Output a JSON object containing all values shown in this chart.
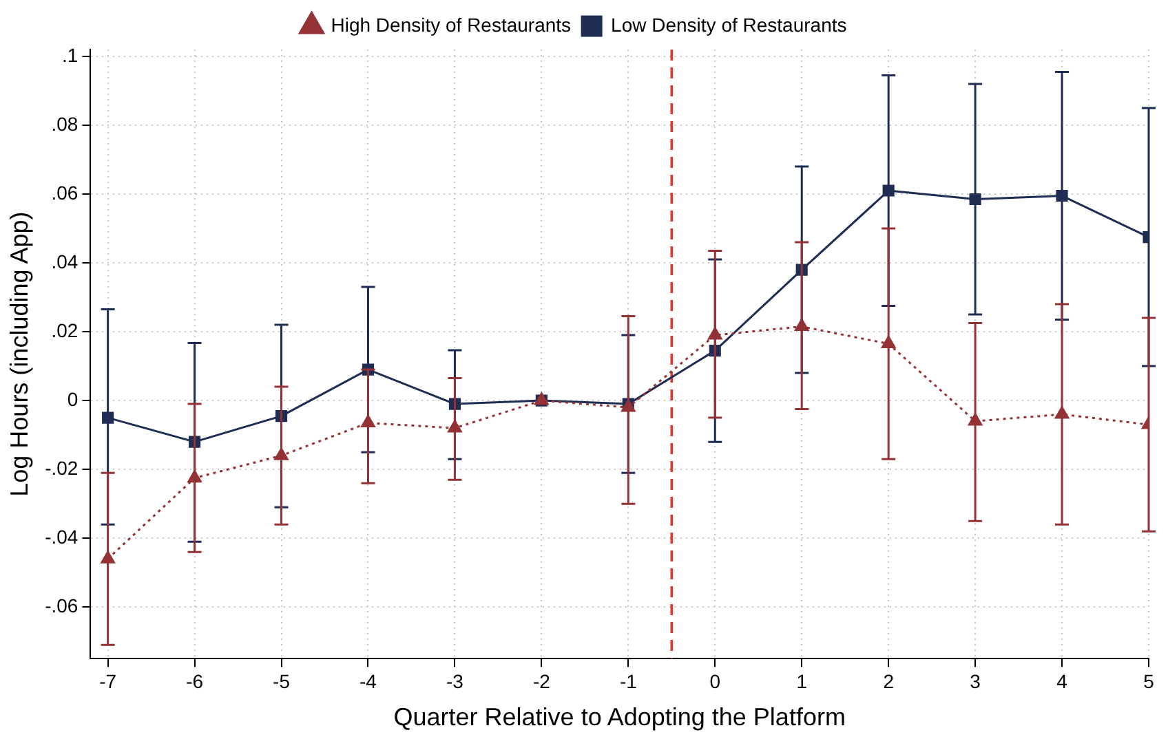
{
  "chart_data": {
    "type": "line",
    "xlabel": "Quarter Relative to Adopting the Platform",
    "ylabel": "Log Hours (including App)",
    "x": [
      -7,
      -6,
      -5,
      -4,
      -3,
      -2,
      -1,
      0,
      1,
      2,
      3,
      4,
      5
    ],
    "series": [
      {
        "name": "Low Density of Restaurants",
        "color": "#1f2d55",
        "marker": "square",
        "line_style": "solid",
        "values": [
          -0.005,
          -0.012,
          -0.0045,
          0.009,
          -0.001,
          0,
          -0.001,
          0.0145,
          0.038,
          0.061,
          0.0585,
          0.0595,
          0.0475
        ],
        "errors": [
          [
            -0.036,
            0.0265
          ],
          [
            -0.041,
            0.0167
          ],
          [
            -0.031,
            0.022
          ],
          [
            -0.015,
            0.033
          ],
          [
            -0.017,
            0.0146
          ],
          null,
          [
            -0.021,
            0.019
          ],
          [
            -0.012,
            0.041
          ],
          [
            0.008,
            0.068
          ],
          [
            0.0275,
            0.0945
          ],
          [
            0.025,
            0.092
          ],
          [
            0.0235,
            0.0955
          ],
          [
            0.01,
            0.085
          ]
        ]
      },
      {
        "name": "High Density of Restaurants",
        "color": "#943236",
        "marker": "triangle",
        "line_style": "dotted",
        "values": [
          -0.046,
          -0.0225,
          -0.016,
          -0.0065,
          -0.008,
          0,
          -0.002,
          0.019,
          0.0215,
          0.0165,
          -0.006,
          -0.004,
          -0.007
        ],
        "errors": [
          [
            -0.071,
            -0.021
          ],
          [
            -0.044,
            -0.001
          ],
          [
            -0.036,
            0.004
          ],
          [
            -0.024,
            0.009
          ],
          [
            -0.023,
            0.0065
          ],
          null,
          [
            -0.03,
            0.0245
          ],
          [
            -0.005,
            0.0435
          ],
          [
            -0.0025,
            0.046
          ],
          [
            -0.017,
            0.05
          ],
          [
            -0.035,
            0.0225
          ],
          [
            -0.036,
            0.028
          ],
          [
            -0.038,
            0.024
          ]
        ]
      }
    ],
    "xlim": [
      -7.2,
      5
    ],
    "xticks": [
      -7,
      -6,
      -5,
      -4,
      -3,
      -2,
      -1,
      0,
      1,
      2,
      3,
      4,
      5
    ],
    "ylim": [
      -0.075,
      0.102
    ],
    "yticks": [
      {
        "value": -0.06,
        "label": "-.06"
      },
      {
        "value": -0.04,
        "label": "-.04"
      },
      {
        "value": -0.02,
        "label": "-.02"
      },
      0,
      {
        "value": 0.02,
        "label": ".02"
      },
      {
        "value": 0.04,
        "label": ".04"
      },
      {
        "value": 0.06,
        "label": ".06"
      },
      {
        "value": 0.08,
        "label": ".08"
      },
      {
        "value": 0.1,
        "label": ".1"
      }
    ],
    "ref_lines": [
      {
        "axis": "x",
        "value": -0.5,
        "color": "#e8332a",
        "line_style": "dashed"
      }
    ],
    "grid": true,
    "legend": "top"
  }
}
